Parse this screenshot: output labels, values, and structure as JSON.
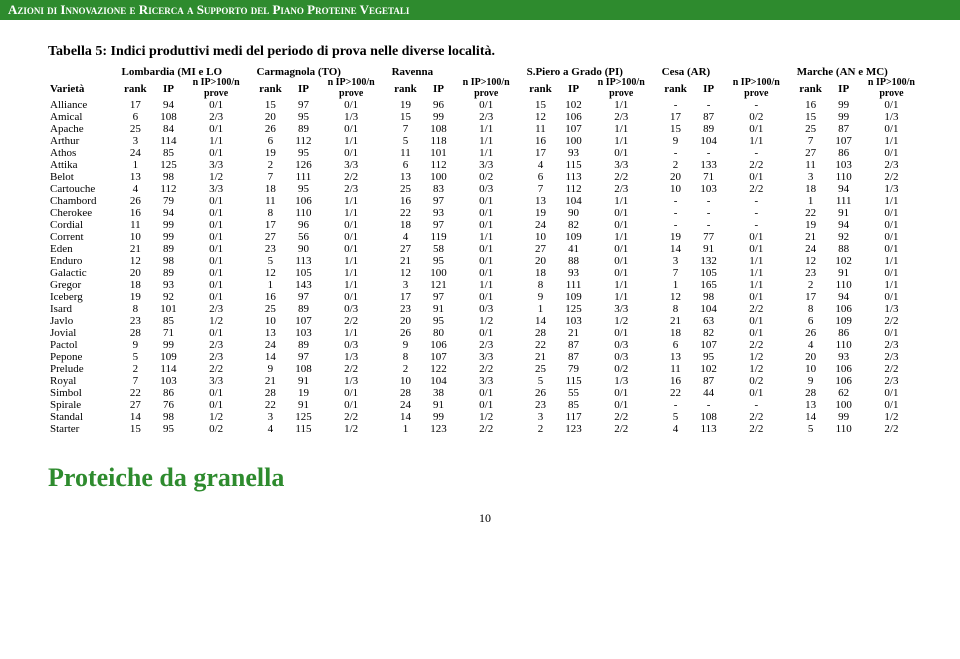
{
  "header": "Azioni di Innovazione e Ricerca a Supporto del Piano Proteine Vegetali",
  "table_title": "Tabella 5: Indici produttivi medi del periodo di prova nelle diverse località.",
  "col_label": "Varietà",
  "sub_headers": {
    "rank": "rank",
    "ip": "IP",
    "ratio": "n IP>100/n prove"
  },
  "groups": [
    "Lombardia (MI e LO",
    "Carmagnola (TO)",
    "Ravenna",
    "S.Piero a Grado (PI)",
    "Cesa (AR)",
    "Marche (AN e MC)"
  ],
  "rows": [
    {
      "v": "Alliance",
      "c": [
        [
          17,
          94,
          "0/1"
        ],
        [
          15,
          97,
          "0/1"
        ],
        [
          19,
          96,
          "0/1"
        ],
        [
          15,
          102,
          "1/1"
        ],
        [
          "-",
          "-",
          "-"
        ],
        [
          16,
          99,
          "0/1"
        ]
      ]
    },
    {
      "v": "Amical",
      "c": [
        [
          6,
          108,
          "2/3"
        ],
        [
          20,
          95,
          "1/3"
        ],
        [
          15,
          99,
          "2/3"
        ],
        [
          12,
          106,
          "2/3"
        ],
        [
          17,
          87,
          "0/2"
        ],
        [
          15,
          99,
          "1/3"
        ]
      ]
    },
    {
      "v": "Apache",
      "c": [
        [
          25,
          84,
          "0/1"
        ],
        [
          26,
          89,
          "0/1"
        ],
        [
          7,
          108,
          "1/1"
        ],
        [
          11,
          107,
          "1/1"
        ],
        [
          15,
          89,
          "0/1"
        ],
        [
          25,
          87,
          "0/1"
        ]
      ]
    },
    {
      "v": "Arthur",
      "c": [
        [
          3,
          114,
          "1/1"
        ],
        [
          6,
          112,
          "1/1"
        ],
        [
          5,
          118,
          "1/1"
        ],
        [
          16,
          100,
          "1/1"
        ],
        [
          9,
          104,
          "1/1"
        ],
        [
          7,
          107,
          "1/1"
        ]
      ]
    },
    {
      "v": "Athos",
      "c": [
        [
          24,
          85,
          "0/1"
        ],
        [
          19,
          95,
          "0/1"
        ],
        [
          11,
          101,
          "1/1"
        ],
        [
          17,
          93,
          "0/1"
        ],
        [
          "-",
          "-",
          "-"
        ],
        [
          27,
          86,
          "0/1"
        ]
      ]
    },
    {
      "v": "Attika",
      "c": [
        [
          1,
          125,
          "3/3"
        ],
        [
          2,
          126,
          "3/3"
        ],
        [
          6,
          112,
          "3/3"
        ],
        [
          4,
          115,
          "3/3"
        ],
        [
          2,
          133,
          "2/2"
        ],
        [
          11,
          103,
          "2/3"
        ]
      ]
    },
    {
      "v": "Belot",
      "c": [
        [
          13,
          98,
          "1/2"
        ],
        [
          7,
          111,
          "2/2"
        ],
        [
          13,
          100,
          "0/2"
        ],
        [
          6,
          113,
          "2/2"
        ],
        [
          20,
          71,
          "0/1"
        ],
        [
          3,
          110,
          "2/2"
        ]
      ]
    },
    {
      "v": "Cartouche",
      "c": [
        [
          4,
          112,
          "3/3"
        ],
        [
          18,
          95,
          "2/3"
        ],
        [
          25,
          83,
          "0/3"
        ],
        [
          7,
          112,
          "2/3"
        ],
        [
          10,
          103,
          "2/2"
        ],
        [
          18,
          94,
          "1/3"
        ]
      ]
    },
    {
      "v": "Chambord",
      "c": [
        [
          26,
          79,
          "0/1"
        ],
        [
          11,
          106,
          "1/1"
        ],
        [
          16,
          97,
          "0/1"
        ],
        [
          13,
          104,
          "1/1"
        ],
        [
          "-",
          "-",
          "-"
        ],
        [
          1,
          111,
          "1/1"
        ]
      ]
    },
    {
      "v": "Cherokee",
      "c": [
        [
          16,
          94,
          "0/1"
        ],
        [
          8,
          110,
          "1/1"
        ],
        [
          22,
          93,
          "0/1"
        ],
        [
          19,
          90,
          "0/1"
        ],
        [
          "-",
          "-",
          "-"
        ],
        [
          22,
          91,
          "0/1"
        ]
      ]
    },
    {
      "v": "Cordial",
      "c": [
        [
          11,
          99,
          "0/1"
        ],
        [
          17,
          96,
          "0/1"
        ],
        [
          18,
          97,
          "0/1"
        ],
        [
          24,
          82,
          "0/1"
        ],
        [
          "-",
          "-",
          "-"
        ],
        [
          19,
          94,
          "0/1"
        ]
      ]
    },
    {
      "v": "Corrent",
      "c": [
        [
          10,
          99,
          "0/1"
        ],
        [
          27,
          56,
          "0/1"
        ],
        [
          4,
          119,
          "1/1"
        ],
        [
          10,
          109,
          "1/1"
        ],
        [
          19,
          77,
          "0/1"
        ],
        [
          21,
          92,
          "0/1"
        ]
      ]
    },
    {
      "v": "Eden",
      "c": [
        [
          21,
          89,
          "0/1"
        ],
        [
          23,
          90,
          "0/1"
        ],
        [
          27,
          58,
          "0/1"
        ],
        [
          27,
          41,
          "0/1"
        ],
        [
          14,
          91,
          "0/1"
        ],
        [
          24,
          88,
          "0/1"
        ]
      ]
    },
    {
      "v": "Enduro",
      "c": [
        [
          12,
          98,
          "0/1"
        ],
        [
          5,
          113,
          "1/1"
        ],
        [
          21,
          95,
          "0/1"
        ],
        [
          20,
          88,
          "0/1"
        ],
        [
          3,
          132,
          "1/1"
        ],
        [
          12,
          102,
          "1/1"
        ]
      ]
    },
    {
      "v": "Galactic",
      "c": [
        [
          20,
          89,
          "0/1"
        ],
        [
          12,
          105,
          "1/1"
        ],
        [
          12,
          100,
          "0/1"
        ],
        [
          18,
          93,
          "0/1"
        ],
        [
          7,
          105,
          "1/1"
        ],
        [
          23,
          91,
          "0/1"
        ]
      ]
    },
    {
      "v": "Gregor",
      "c": [
        [
          18,
          93,
          "0/1"
        ],
        [
          1,
          143,
          "1/1"
        ],
        [
          3,
          121,
          "1/1"
        ],
        [
          8,
          111,
          "1/1"
        ],
        [
          1,
          165,
          "1/1"
        ],
        [
          2,
          110,
          "1/1"
        ]
      ]
    },
    {
      "v": "Iceberg",
      "c": [
        [
          19,
          92,
          "0/1"
        ],
        [
          16,
          97,
          "0/1"
        ],
        [
          17,
          97,
          "0/1"
        ],
        [
          9,
          109,
          "1/1"
        ],
        [
          12,
          98,
          "0/1"
        ],
        [
          17,
          94,
          "0/1"
        ]
      ]
    },
    {
      "v": "Isard",
      "c": [
        [
          8,
          101,
          "2/3"
        ],
        [
          25,
          89,
          "0/3"
        ],
        [
          23,
          91,
          "0/3"
        ],
        [
          1,
          125,
          "3/3"
        ],
        [
          8,
          104,
          "2/2"
        ],
        [
          8,
          106,
          "1/3"
        ]
      ]
    },
    {
      "v": "Javlo",
      "c": [
        [
          23,
          85,
          "1/2"
        ],
        [
          10,
          107,
          "2/2"
        ],
        [
          20,
          95,
          "1/2"
        ],
        [
          14,
          103,
          "1/2"
        ],
        [
          21,
          63,
          "0/1"
        ],
        [
          6,
          109,
          "2/2"
        ]
      ]
    },
    {
      "v": "Jovial",
      "c": [
        [
          28,
          71,
          "0/1"
        ],
        [
          13,
          103,
          "1/1"
        ],
        [
          26,
          80,
          "0/1"
        ],
        [
          28,
          21,
          "0/1"
        ],
        [
          18,
          82,
          "0/1"
        ],
        [
          26,
          86,
          "0/1"
        ]
      ]
    },
    {
      "v": "Pactol",
      "c": [
        [
          9,
          99,
          "2/3"
        ],
        [
          24,
          89,
          "0/3"
        ],
        [
          9,
          106,
          "2/3"
        ],
        [
          22,
          87,
          "0/3"
        ],
        [
          6,
          107,
          "2/2"
        ],
        [
          4,
          110,
          "2/3"
        ]
      ]
    },
    {
      "v": "Pepone",
      "c": [
        [
          5,
          109,
          "2/3"
        ],
        [
          14,
          97,
          "1/3"
        ],
        [
          8,
          107,
          "3/3"
        ],
        [
          21,
          87,
          "0/3"
        ],
        [
          13,
          95,
          "1/2"
        ],
        [
          20,
          93,
          "2/3"
        ]
      ]
    },
    {
      "v": "Prelude",
      "c": [
        [
          2,
          114,
          "2/2"
        ],
        [
          9,
          108,
          "2/2"
        ],
        [
          2,
          122,
          "2/2"
        ],
        [
          25,
          79,
          "0/2"
        ],
        [
          11,
          102,
          "1/2"
        ],
        [
          10,
          106,
          "2/2"
        ]
      ]
    },
    {
      "v": "Royal",
      "c": [
        [
          7,
          103,
          "3/3"
        ],
        [
          21,
          91,
          "1/3"
        ],
        [
          10,
          104,
          "3/3"
        ],
        [
          5,
          115,
          "1/3"
        ],
        [
          16,
          87,
          "0/2"
        ],
        [
          9,
          106,
          "2/3"
        ]
      ]
    },
    {
      "v": "Simbol",
      "c": [
        [
          22,
          86,
          "0/1"
        ],
        [
          28,
          19,
          "0/1"
        ],
        [
          28,
          38,
          "0/1"
        ],
        [
          26,
          55,
          "0/1"
        ],
        [
          22,
          44,
          "0/1"
        ],
        [
          28,
          62,
          "0/1"
        ]
      ]
    },
    {
      "v": "Spirale",
      "c": [
        [
          27,
          76,
          "0/1"
        ],
        [
          22,
          91,
          "0/1"
        ],
        [
          24,
          91,
          "0/1"
        ],
        [
          23,
          85,
          "0/1"
        ],
        [
          "-",
          "-",
          "-"
        ],
        [
          13,
          100,
          "0/1"
        ]
      ]
    },
    {
      "v": "Standal",
      "c": [
        [
          14,
          98,
          "1/2"
        ],
        [
          3,
          125,
          "2/2"
        ],
        [
          14,
          99,
          "1/2"
        ],
        [
          3,
          117,
          "2/2"
        ],
        [
          5,
          108,
          "2/2"
        ],
        [
          14,
          99,
          "1/2"
        ]
      ]
    },
    {
      "v": "Starter",
      "c": [
        [
          15,
          95,
          "0/2"
        ],
        [
          4,
          115,
          "1/2"
        ],
        [
          1,
          123,
          "2/2"
        ],
        [
          2,
          123,
          "2/2"
        ],
        [
          4,
          113,
          "2/2"
        ],
        [
          5,
          110,
          "2/2"
        ]
      ]
    }
  ],
  "footer_title": "Proteiche da granella",
  "page_number": "10"
}
